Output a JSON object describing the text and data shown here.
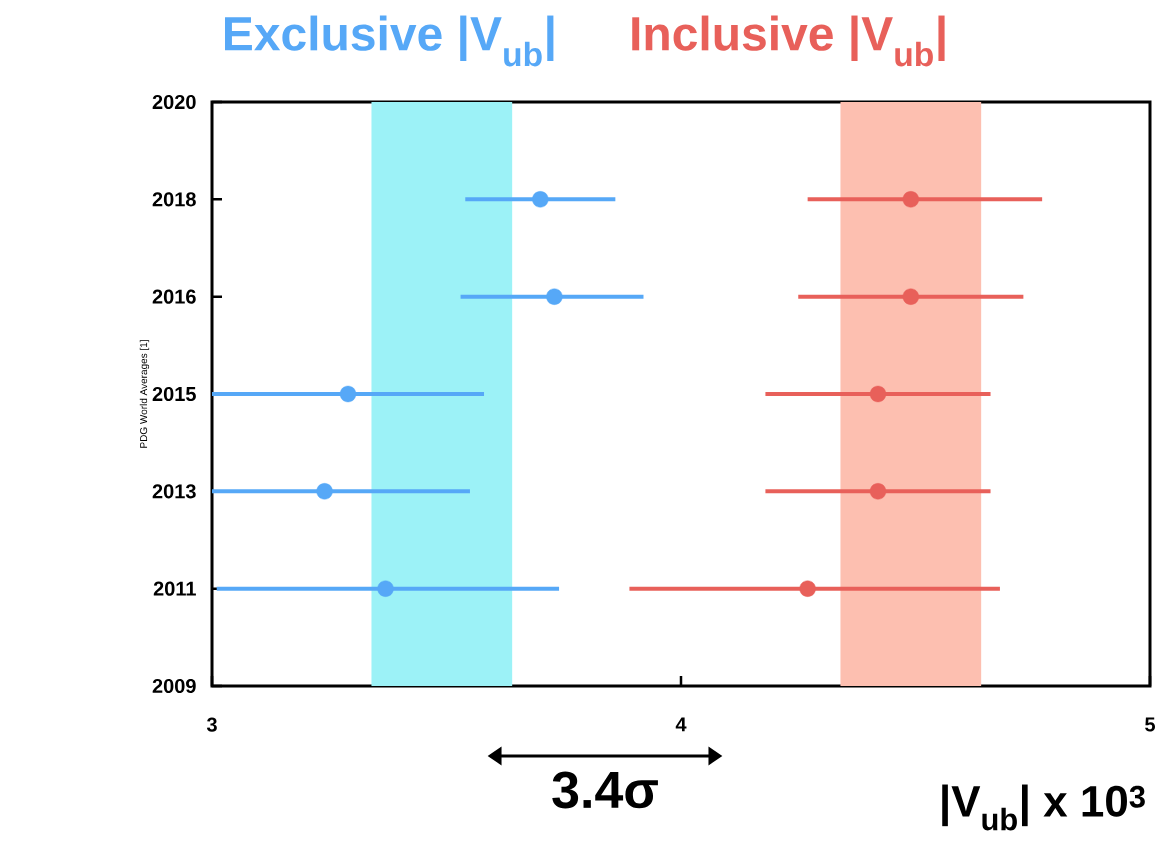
{
  "chart_data": {
    "type": "scatter",
    "orientation": "horizontal",
    "xlabel": "|V$_{ub}$| x 10$^{3}$",
    "ylabel": "PDG World Averages [1]",
    "categories": [
      "2020",
      "2018",
      "2016",
      "2015",
      "2013",
      "2011",
      "2009"
    ],
    "xlim": [
      3,
      5
    ],
    "xticks": [
      3,
      {
        "value": 3.5,
        "label": null
      },
      4,
      {
        "value": 4.5,
        "label": null
      },
      5
    ],
    "series": [
      {
        "name": "Exclusive |V$_{ub}$|",
        "color": "#56a8f7",
        "values": [
          null,
          3.7,
          3.73,
          3.29,
          3.24,
          3.37,
          null
        ],
        "errors": [
          null,
          [
            3.54,
            3.86
          ],
          [
            3.53,
            3.92
          ],
          [
            3.0,
            3.58
          ],
          [
            3.0,
            3.55
          ],
          [
            3.01,
            3.74
          ],
          null
        ]
      },
      {
        "name": "Inclusive |V$_{ub}$|",
        "color": "#e8605a",
        "values": [
          null,
          4.49,
          4.49,
          4.42,
          4.42,
          4.27,
          null
        ],
        "errors": [
          null,
          [
            4.27,
            4.77
          ],
          [
            4.25,
            4.73
          ],
          [
            4.18,
            4.66
          ],
          [
            4.18,
            4.66
          ],
          [
            3.89,
            4.68
          ],
          null
        ]
      }
    ],
    "bands": [
      {
        "axis": "x",
        "from": 3.34,
        "to": 3.64,
        "color": "#9cf2f7"
      },
      {
        "axis": "x",
        "from": 4.34,
        "to": 4.64,
        "color": "#fdbfb0"
      }
    ],
    "annotations": [
      "3.4σ"
    ],
    "marker": "circle",
    "legend": "top",
    "grid": false
  }
}
